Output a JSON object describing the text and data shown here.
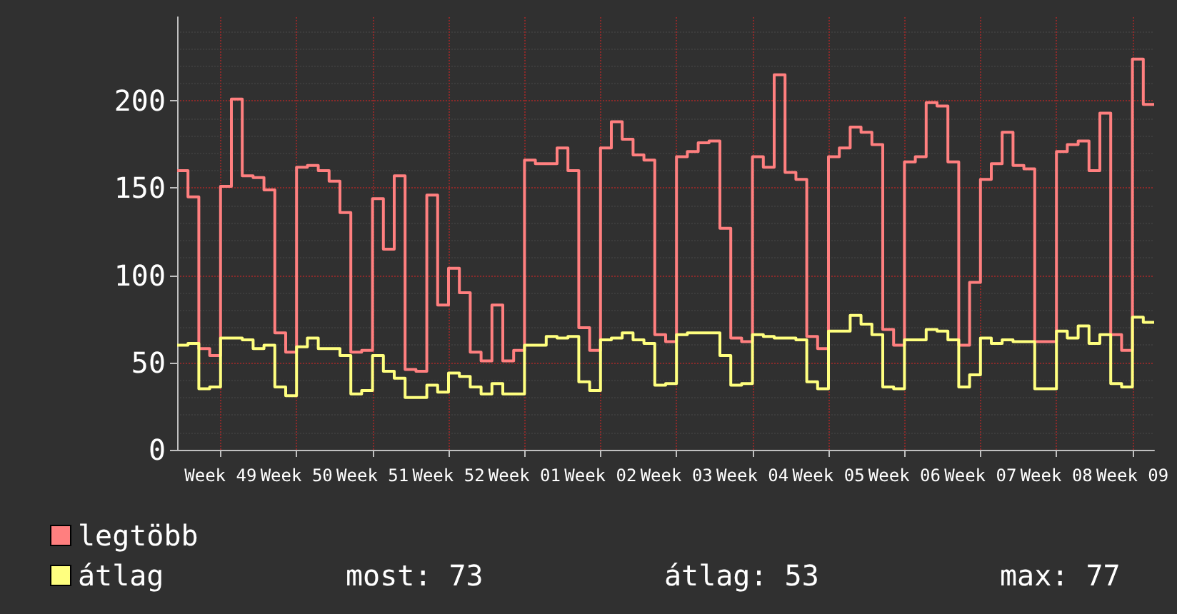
{
  "chart_data": {
    "type": "step",
    "categories": [
      null,
      null,
      null,
      null,
      "Week 49",
      null,
      null,
      null,
      null,
      null,
      null,
      "Week 50",
      null,
      null,
      null,
      null,
      null,
      null,
      "Week 51",
      null,
      null,
      null,
      null,
      null,
      null,
      "Week 52",
      null,
      null,
      null,
      null,
      null,
      null,
      "Week 01",
      null,
      null,
      null,
      null,
      null,
      null,
      "Week 02",
      null,
      null,
      null,
      null,
      null,
      null,
      "Week 03",
      null,
      null,
      null,
      null,
      null,
      null,
      "Week 04",
      null,
      null,
      null,
      null,
      null,
      null,
      "Week 05",
      null,
      null,
      null,
      null,
      null,
      null,
      "Week 06",
      null,
      null,
      null,
      null,
      null,
      null,
      "Week 07",
      null,
      null,
      null,
      null,
      null,
      null,
      "Week 08",
      null,
      null,
      null,
      null,
      null,
      null,
      "Week 09",
      null,
      null
    ],
    "series": [
      {
        "name": "legtöbb",
        "color": "#ff7f7f",
        "values": [
          160,
          145,
          58,
          54,
          151,
          201,
          157,
          156,
          149,
          67,
          56,
          162,
          163,
          160,
          154,
          136,
          56,
          57,
          144,
          115,
          157,
          46,
          45,
          146,
          83,
          104,
          90,
          56,
          51,
          83,
          51,
          57,
          166,
          164,
          164,
          173,
          160,
          70,
          57,
          173,
          188,
          178,
          169,
          166,
          66,
          62,
          168,
          171,
          176,
          177,
          127,
          64,
          62,
          168,
          162,
          215,
          159,
          155,
          65,
          58,
          168,
          173,
          185,
          182,
          175,
          69,
          60,
          165,
          168,
          199,
          197,
          165,
          60,
          96,
          155,
          164,
          182,
          163,
          161,
          62,
          62,
          171,
          175,
          177,
          160,
          193,
          66,
          57,
          224,
          198,
          198
        ]
      },
      {
        "name": "átlag",
        "color": "#ffff7f",
        "values": [
          60,
          61,
          35,
          36,
          64,
          64,
          63,
          58,
          60,
          36,
          31,
          59,
          64,
          58,
          58,
          54,
          32,
          34,
          54,
          45,
          41,
          30,
          30,
          37,
          33,
          44,
          42,
          36,
          32,
          38,
          32,
          32,
          60,
          60,
          65,
          64,
          65,
          39,
          34,
          63,
          64,
          67,
          63,
          61,
          37,
          38,
          66,
          67,
          67,
          67,
          54,
          37,
          38,
          66,
          65,
          64,
          64,
          63,
          39,
          35,
          68,
          68,
          77,
          72,
          66,
          36,
          35,
          63,
          63,
          69,
          68,
          63,
          36,
          43,
          64,
          61,
          63,
          62,
          62,
          35,
          35,
          68,
          64,
          71,
          61,
          66,
          38,
          36,
          76,
          73,
          73
        ]
      }
    ],
    "ylim": [
      0,
      248
    ],
    "yticks": [
      0,
      50,
      100,
      150,
      200
    ],
    "grid": true,
    "legend": "bottom left",
    "annotations": [
      "most: 73",
      "átlag: 53",
      "max: 77"
    ]
  }
}
